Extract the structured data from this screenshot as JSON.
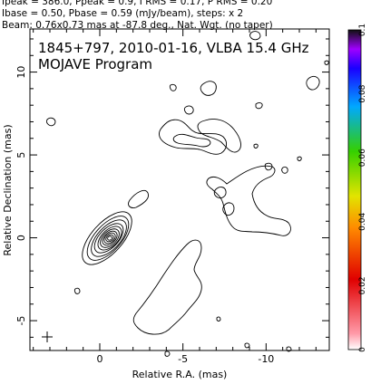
{
  "header": {
    "line1": "Ipeak = 386.0, Ppeak = 0.9, I RMS = 0.17, P RMS = 0.20",
    "line2": "Ibase = 0.50, Pbase = 0.59 (mJy/beam), steps: x 2",
    "line3": "Beam: 0.76x0.73 mas at -87.8 deg., Nat. Wgt. (no taper)"
  },
  "chart_data": {
    "type": "contour",
    "title": "1845+797, 2010-01-16, VLBA 15.4 GHz",
    "subtitle": "MOJAVE Program",
    "xlabel": "Relative R.A. (mas)",
    "ylabel": "Relative Declination (mas)",
    "xlim": [
      4.2,
      -13.8
    ],
    "ylim": [
      -6.8,
      12.6
    ],
    "x_ticks": [
      0,
      -5,
      -10
    ],
    "y_ticks": [
      -5,
      0,
      5,
      10
    ],
    "source": "1845+797",
    "date": "2010-01-16",
    "instrument": "VLBA",
    "frequency": "15.4 GHz",
    "ipeak": 386.0,
    "ppeak": 0.9,
    "i_rms": 0.17,
    "p_rms": 0.2,
    "ibase": 0.5,
    "pbase": 0.59,
    "units": "mJy/beam",
    "contour_step_factor": 2,
    "beam": {
      "major_mas": 0.76,
      "minor_mas": 0.73,
      "pa_deg": -87.8
    },
    "weighting": "Nat. Wgt. (no taper)",
    "colorbar": {
      "range": [
        0,
        0.1
      ],
      "ticks": [
        0,
        0.02,
        0.04,
        0.06,
        0.08,
        0.1
      ],
      "tick_labels": [
        "0",
        "0.02",
        "0.04",
        "0.06",
        "0.08",
        "0.1"
      ]
    }
  }
}
